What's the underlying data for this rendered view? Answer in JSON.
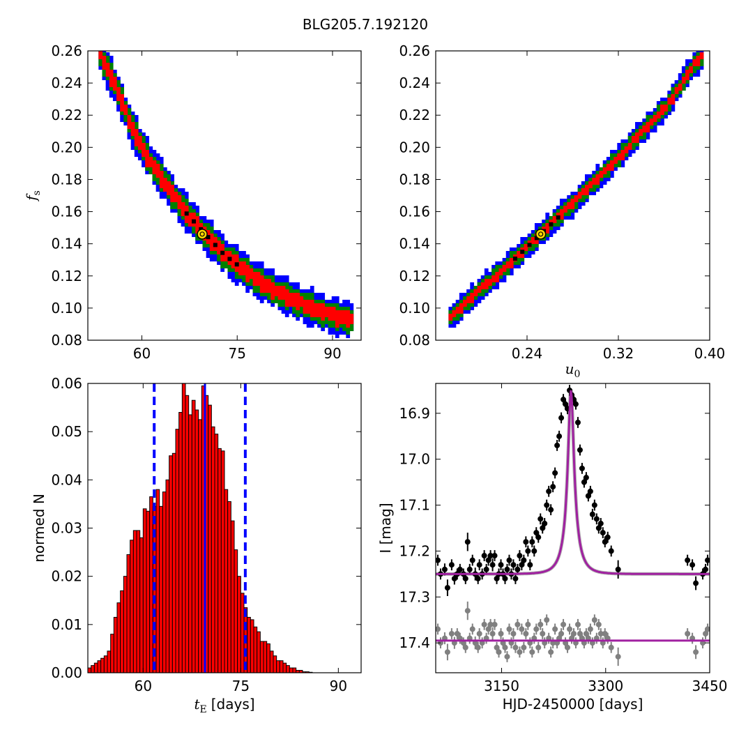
{
  "figure": {
    "title": "BLG205.7.192120"
  },
  "chart_data": [
    {
      "id": "fs_vs_tE",
      "type": "heatmap",
      "xlabel": "",
      "ylabel": "f_s",
      "xlim": [
        51.5,
        94.5
      ],
      "ylim": [
        0.08,
        0.26
      ],
      "xticks": [
        60,
        75,
        90
      ],
      "yticks": [
        0.08,
        0.1,
        0.12,
        0.14,
        0.16,
        0.18,
        0.2,
        0.22,
        0.24,
        0.26
      ],
      "ytick_labels": [
        "0.08",
        "0.10",
        "0.12",
        "0.14",
        "0.16",
        "0.18",
        "0.20",
        "0.22",
        "0.24",
        "0.26"
      ],
      "xtick_labels": [
        "60",
        "75",
        "90"
      ],
      "bands": {
        "centerline": [
          [
            53.5,
            0.257
          ],
          [
            56,
            0.237
          ],
          [
            58.5,
            0.212
          ],
          [
            61,
            0.193
          ],
          [
            64,
            0.176
          ],
          [
            67,
            0.159
          ],
          [
            70,
            0.146
          ],
          [
            73,
            0.133
          ],
          [
            76,
            0.124
          ],
          [
            79,
            0.115
          ],
          [
            82,
            0.109
          ],
          [
            85,
            0.103
          ],
          [
            88,
            0.098
          ],
          [
            91,
            0.094
          ],
          [
            93,
            0.093
          ]
        ],
        "blue_halfwidth": 0.011,
        "green_halfwidth": 0.0075,
        "red_halfwidth": 0.0045,
        "black_range_x": [
          67,
          75
        ]
      },
      "best_fit": {
        "x": 69.5,
        "y": 0.146
      },
      "colors": {
        "blue": "#0000ff",
        "green": "#008000",
        "red": "#ff0000",
        "black": "#000000",
        "marker": "#ffd700"
      }
    },
    {
      "id": "fs_vs_u0",
      "type": "heatmap",
      "xlabel": "u_0",
      "ylabel": "",
      "xlim": [
        0.16,
        0.4
      ],
      "ylim": [
        0.08,
        0.26
      ],
      "xticks": [
        0.24,
        0.32,
        0.4
      ],
      "xtick_labels": [
        "0.24",
        "0.32",
        "0.40"
      ],
      "yticks": [
        0.08,
        0.1,
        0.12,
        0.14,
        0.16,
        0.18,
        0.2,
        0.22,
        0.24,
        0.26
      ],
      "ytick_labels": [
        "0.08",
        "0.10",
        "0.12",
        "0.14",
        "0.16",
        "0.18",
        "0.20",
        "0.22",
        "0.24",
        "0.26"
      ],
      "bands": {
        "centerline": [
          [
            0.173,
            0.094
          ],
          [
            0.2,
            0.112
          ],
          [
            0.23,
            0.131
          ],
          [
            0.252,
            0.146
          ],
          [
            0.28,
            0.165
          ],
          [
            0.31,
            0.186
          ],
          [
            0.34,
            0.209
          ],
          [
            0.365,
            0.228
          ],
          [
            0.385,
            0.25
          ],
          [
            0.393,
            0.256
          ]
        ],
        "blue_halfwidth": 0.0075,
        "green_halfwidth": 0.005,
        "red_halfwidth": 0.0025,
        "black_range_x": [
          0.225,
          0.27
        ]
      },
      "best_fit": {
        "x": 0.252,
        "y": 0.146
      },
      "colors": {
        "blue": "#0000ff",
        "green": "#008000",
        "red": "#ff0000",
        "black": "#000000",
        "marker": "#ffd700"
      }
    },
    {
      "id": "tE_histogram",
      "type": "bar",
      "xlabel": "t_E [days]",
      "xlabel_unit": "[days]",
      "ylabel": "normed N",
      "xlim": [
        51.5,
        93.5
      ],
      "ylim": [
        0,
        0.06
      ],
      "xticks": [
        60,
        75,
        90
      ],
      "xtick_labels": [
        "60",
        "75",
        "90"
      ],
      "yticks": [
        0.0,
        0.01,
        0.02,
        0.03,
        0.04,
        0.05,
        0.06
      ],
      "ytick_labels": [
        "0.00",
        "0.01",
        "0.02",
        "0.03",
        "0.04",
        "0.05",
        "0.06"
      ],
      "bin_start": 51.5,
      "bin_width": 0.5,
      "values": [
        0.001,
        0.0015,
        0.002,
        0.0025,
        0.003,
        0.0035,
        0.0045,
        0.008,
        0.0115,
        0.0145,
        0.017,
        0.02,
        0.0245,
        0.0275,
        0.0295,
        0.0295,
        0.028,
        0.034,
        0.0335,
        0.0365,
        0.0345,
        0.038,
        0.0345,
        0.0375,
        0.04,
        0.045,
        0.0455,
        0.0505,
        0.054,
        0.06,
        0.0575,
        0.0535,
        0.0565,
        0.0545,
        0.0525,
        0.0595,
        0.0575,
        0.0555,
        0.051,
        0.0495,
        0.0465,
        0.046,
        0.038,
        0.0355,
        0.0315,
        0.0255,
        0.02,
        0.0165,
        0.0135,
        0.0115,
        0.011,
        0.0095,
        0.0085,
        0.0065,
        0.0065,
        0.006,
        0.0045,
        0.0035,
        0.0025,
        0.0025,
        0.002,
        0.0015,
        0.001,
        0.001,
        0.0005,
        0.0005,
        0.0002,
        0.0002,
        0.0001
      ],
      "median": 69.5,
      "ci_low": 61.7,
      "ci_high": 75.7,
      "colors": {
        "bar": "#ff0000",
        "edge": "#000000",
        "lines": "#0000ff"
      }
    },
    {
      "id": "light_curve",
      "type": "scatter",
      "xlabel": "HJD-2450000 [days]",
      "ylabel": "I [mag]",
      "xlim": [
        3055,
        3450
      ],
      "ylim": [
        17.465,
        16.835
      ],
      "xticks": [
        3150,
        3300,
        3450
      ],
      "xtick_labels": [
        "3150",
        "3300",
        "3450"
      ],
      "yticks": [
        16.9,
        17.0,
        17.1,
        17.2,
        17.3,
        17.4
      ],
      "ytick_labels": [
        "16.9",
        "17.0",
        "17.1",
        "17.2",
        "17.3",
        "17.4"
      ],
      "model": {
        "t0": 3250,
        "tE": 69.5,
        "u0": 0.252,
        "baseline": 17.25,
        "peak": 16.85
      },
      "residual_baseline": 17.395,
      "series": [
        {
          "role": "data",
          "x": [
            3058,
            3062,
            3068,
            3072,
            3078,
            3082,
            3086,
            3090,
            3095,
            3098,
            3101,
            3104,
            3108,
            3112,
            3116,
            3118,
            3122,
            3125,
            3128,
            3131,
            3134,
            3137,
            3140,
            3143,
            3146,
            3149,
            3152,
            3155,
            3158,
            3161,
            3164,
            3167,
            3170,
            3173,
            3176,
            3179,
            3182,
            3185,
            3188,
            3191,
            3194,
            3197,
            3200,
            3203,
            3206,
            3209,
            3212,
            3215,
            3218,
            3221,
            3224,
            3227,
            3230,
            3233,
            3236,
            3239,
            3242,
            3245,
            3248,
            3251,
            3254,
            3257,
            3260,
            3263,
            3266,
            3269,
            3272,
            3275,
            3278,
            3281,
            3284,
            3287,
            3290,
            3293,
            3296,
            3299,
            3303,
            3308,
            3318,
            3418,
            3425,
            3430,
            3440,
            3444,
            3447
          ],
          "y": [
            17.22,
            17.25,
            17.24,
            17.28,
            17.23,
            17.26,
            17.25,
            17.24,
            17.25,
            17.26,
            17.18,
            17.24,
            17.22,
            17.25,
            17.26,
            17.23,
            17.25,
            17.21,
            17.24,
            17.22,
            17.21,
            17.23,
            17.21,
            17.26,
            17.25,
            17.23,
            17.25,
            17.26,
            17.24,
            17.22,
            17.25,
            17.23,
            17.26,
            17.24,
            17.21,
            17.23,
            17.22,
            17.18,
            17.2,
            17.23,
            17.18,
            17.2,
            17.16,
            17.17,
            17.13,
            17.15,
            17.14,
            17.1,
            17.07,
            17.11,
            17.06,
            17.03,
            16.97,
            16.95,
            16.91,
            16.87,
            16.88,
            16.89,
            16.85,
            16.86,
            16.87,
            16.88,
            16.92,
            16.98,
            17.02,
            17.05,
            17.04,
            17.08,
            17.07,
            17.12,
            17.1,
            17.13,
            17.15,
            17.14,
            17.16,
            17.18,
            17.17,
            17.2,
            17.24,
            17.22,
            17.23,
            17.27,
            17.25,
            17.24,
            17.22
          ],
          "err": [
            0.012,
            0.012,
            0.013,
            0.018,
            0.012,
            0.013,
            0.012,
            0.012,
            0.012,
            0.012,
            0.02,
            0.012,
            0.012,
            0.014,
            0.012,
            0.012,
            0.012,
            0.012,
            0.012,
            0.012,
            0.012,
            0.014,
            0.012,
            0.012,
            0.012,
            0.012,
            0.012,
            0.012,
            0.012,
            0.012,
            0.012,
            0.012,
            0.012,
            0.012,
            0.012,
            0.012,
            0.012,
            0.012,
            0.012,
            0.012,
            0.012,
            0.012,
            0.012,
            0.012,
            0.012,
            0.012,
            0.012,
            0.012,
            0.012,
            0.012,
            0.012,
            0.012,
            0.012,
            0.012,
            0.012,
            0.012,
            0.012,
            0.012,
            0.012,
            0.012,
            0.012,
            0.012,
            0.012,
            0.012,
            0.012,
            0.012,
            0.012,
            0.012,
            0.012,
            0.012,
            0.012,
            0.012,
            0.012,
            0.012,
            0.012,
            0.012,
            0.012,
            0.012,
            0.02,
            0.012,
            0.012,
            0.015,
            0.012,
            0.012,
            0.012
          ],
          "color": "#000000"
        },
        {
          "role": "residuals",
          "x": [
            3058,
            3062,
            3068,
            3072,
            3078,
            3082,
            3086,
            3090,
            3095,
            3098,
            3101,
            3104,
            3108,
            3112,
            3116,
            3118,
            3122,
            3125,
            3128,
            3131,
            3134,
            3137,
            3140,
            3143,
            3146,
            3149,
            3152,
            3155,
            3158,
            3161,
            3164,
            3167,
            3170,
            3173,
            3176,
            3179,
            3182,
            3185,
            3188,
            3191,
            3194,
            3197,
            3200,
            3203,
            3206,
            3209,
            3212,
            3215,
            3218,
            3221,
            3224,
            3227,
            3230,
            3233,
            3236,
            3239,
            3242,
            3245,
            3248,
            3251,
            3254,
            3257,
            3260,
            3263,
            3266,
            3269,
            3272,
            3275,
            3278,
            3281,
            3284,
            3287,
            3290,
            3293,
            3296,
            3299,
            3303,
            3308,
            3318,
            3418,
            3425,
            3430,
            3440,
            3444,
            3447
          ],
          "y": [
            17.37,
            17.4,
            17.39,
            17.42,
            17.38,
            17.4,
            17.38,
            17.39,
            17.4,
            17.41,
            17.33,
            17.39,
            17.37,
            17.4,
            17.41,
            17.38,
            17.4,
            17.36,
            17.39,
            17.37,
            17.36,
            17.38,
            17.36,
            17.41,
            17.42,
            17.38,
            17.4,
            17.41,
            17.43,
            17.37,
            17.4,
            17.38,
            17.41,
            17.36,
            17.42,
            17.37,
            17.41,
            17.38,
            17.36,
            17.4,
            17.42,
            17.39,
            17.37,
            17.41,
            17.36,
            17.38,
            17.4,
            17.35,
            17.39,
            17.42,
            17.4,
            17.37,
            17.4,
            17.39,
            17.38,
            17.36,
            17.4,
            17.41,
            17.37,
            17.39,
            17.38,
            17.4,
            17.36,
            17.38,
            17.39,
            17.4,
            17.38,
            17.39,
            17.37,
            17.4,
            17.35,
            17.39,
            17.36,
            17.38,
            17.4,
            17.38,
            17.39,
            17.41,
            17.43,
            17.38,
            17.39,
            17.42,
            17.4,
            17.38,
            17.37
          ],
          "err": [
            0.012,
            0.012,
            0.013,
            0.018,
            0.012,
            0.013,
            0.012,
            0.012,
            0.012,
            0.012,
            0.02,
            0.012,
            0.012,
            0.014,
            0.012,
            0.012,
            0.012,
            0.012,
            0.012,
            0.012,
            0.012,
            0.014,
            0.012,
            0.012,
            0.012,
            0.012,
            0.012,
            0.012,
            0.012,
            0.012,
            0.012,
            0.012,
            0.012,
            0.012,
            0.012,
            0.012,
            0.012,
            0.012,
            0.012,
            0.012,
            0.012,
            0.012,
            0.012,
            0.012,
            0.012,
            0.012,
            0.012,
            0.012,
            0.012,
            0.012,
            0.012,
            0.012,
            0.012,
            0.012,
            0.012,
            0.012,
            0.012,
            0.012,
            0.012,
            0.012,
            0.012,
            0.012,
            0.012,
            0.012,
            0.012,
            0.012,
            0.012,
            0.012,
            0.012,
            0.012,
            0.012,
            0.012,
            0.012,
            0.012,
            0.012,
            0.012,
            0.012,
            0.012,
            0.02,
            0.012,
            0.012,
            0.015,
            0.012,
            0.012,
            0.012
          ],
          "color": "#808080"
        }
      ],
      "colors": {
        "model": "#a020a0",
        "model_shadow": "#808080"
      }
    }
  ]
}
